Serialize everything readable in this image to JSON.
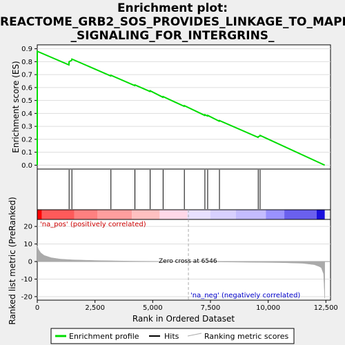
{
  "title_lines": [
    "Enrichment plot:",
    "REACTOME_GRB2_SOS_PROVIDES_LINKAGE_TO_MAPK",
    "_SIGNALING_FOR_INTERGRINS_"
  ],
  "colors": {
    "enrichment_line": "#00dd00",
    "hits": "#000000",
    "zero_cross_line": "#aaaaaa",
    "metric_fill": "#aaaaaa",
    "pos_strong": "#ff0000",
    "neg_strong": "#0000ff",
    "plot_bg": "#ffffff",
    "page_bg": "#efefef"
  },
  "legend": {
    "enrichment": "Enrichment profile",
    "hits": "Hits",
    "ranking": "Ranking metric scores"
  },
  "chart_data": [
    {
      "type": "line",
      "name": "enrichment-profile",
      "ylabel": "Enrichment score (ES)",
      "xlim": [
        0,
        12700
      ],
      "ylim": [
        -0.03,
        0.93
      ],
      "yticks": [
        0.0,
        0.1,
        0.2,
        0.3,
        0.4,
        0.5,
        0.6,
        0.7,
        0.8,
        0.9
      ],
      "x": [
        0,
        1,
        1370,
        1380,
        1490,
        1500,
        3180,
        3190,
        4220,
        4230,
        4880,
        4890,
        5440,
        5450,
        6360,
        6370,
        7250,
        7260,
        7370,
        7380,
        7880,
        7890,
        9560,
        9570,
        9640,
        9650,
        12450
      ],
      "y": [
        0.0,
        0.88,
        0.775,
        0.8,
        0.81,
        0.82,
        0.69,
        0.695,
        0.615,
        0.62,
        0.57,
        0.575,
        0.525,
        0.53,
        0.455,
        0.46,
        0.385,
        0.39,
        0.38,
        0.385,
        0.34,
        0.345,
        0.215,
        0.22,
        0.225,
        0.23,
        0.0
      ],
      "grid": true
    },
    {
      "type": "scatter",
      "name": "hits",
      "x": [
        1380,
        1500,
        3190,
        4230,
        4890,
        5450,
        6370,
        7260,
        7380,
        7890,
        9570,
        9650
      ]
    },
    {
      "type": "area",
      "name": "ranked-list-metric",
      "ylabel": "Ranked list metric (PreRanked)",
      "xlabel": "Rank in Ordered Dataset",
      "xlim": [
        0,
        12700
      ],
      "ylim": [
        -22,
        24
      ],
      "yticks": [
        -20,
        -10,
        0,
        10,
        20
      ],
      "xticks": [
        0,
        2500,
        5000,
        7500,
        10000,
        12500
      ],
      "xtick_labels": [
        "0",
        "2,500",
        "5,000",
        "7,500",
        "10,000",
        "12,500"
      ],
      "x": [
        0,
        50,
        150,
        300,
        600,
        1000,
        1500,
        2500,
        4000,
        6546,
        9000,
        10500,
        11500,
        12000,
        12200,
        12300,
        12400,
        12450
      ],
      "y": [
        9,
        7,
        5,
        3.5,
        2.2,
        1.4,
        1.0,
        0.6,
        0.25,
        0,
        -0.4,
        -0.6,
        -1.0,
        -1.8,
        -2.8,
        -3.5,
        -7,
        -21
      ],
      "zero_cross": 6546,
      "annotations": {
        "pos": "'na_pos' (positively correlated)",
        "neg": "'na_neg' (negatively correlated)",
        "zero": "Zero cross at 6546"
      }
    }
  ]
}
